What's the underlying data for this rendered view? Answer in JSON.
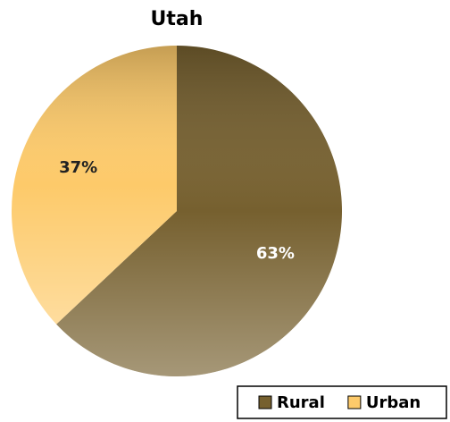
{
  "chart_data": {
    "type": "pie",
    "title": "Utah",
    "categories": [
      "Rural",
      "Urban"
    ],
    "values": [
      63,
      37
    ],
    "value_labels": [
      "63%",
      "37%"
    ],
    "colors": [
      "#76602f",
      "#fdca6a"
    ],
    "legend": "bottom-right"
  }
}
